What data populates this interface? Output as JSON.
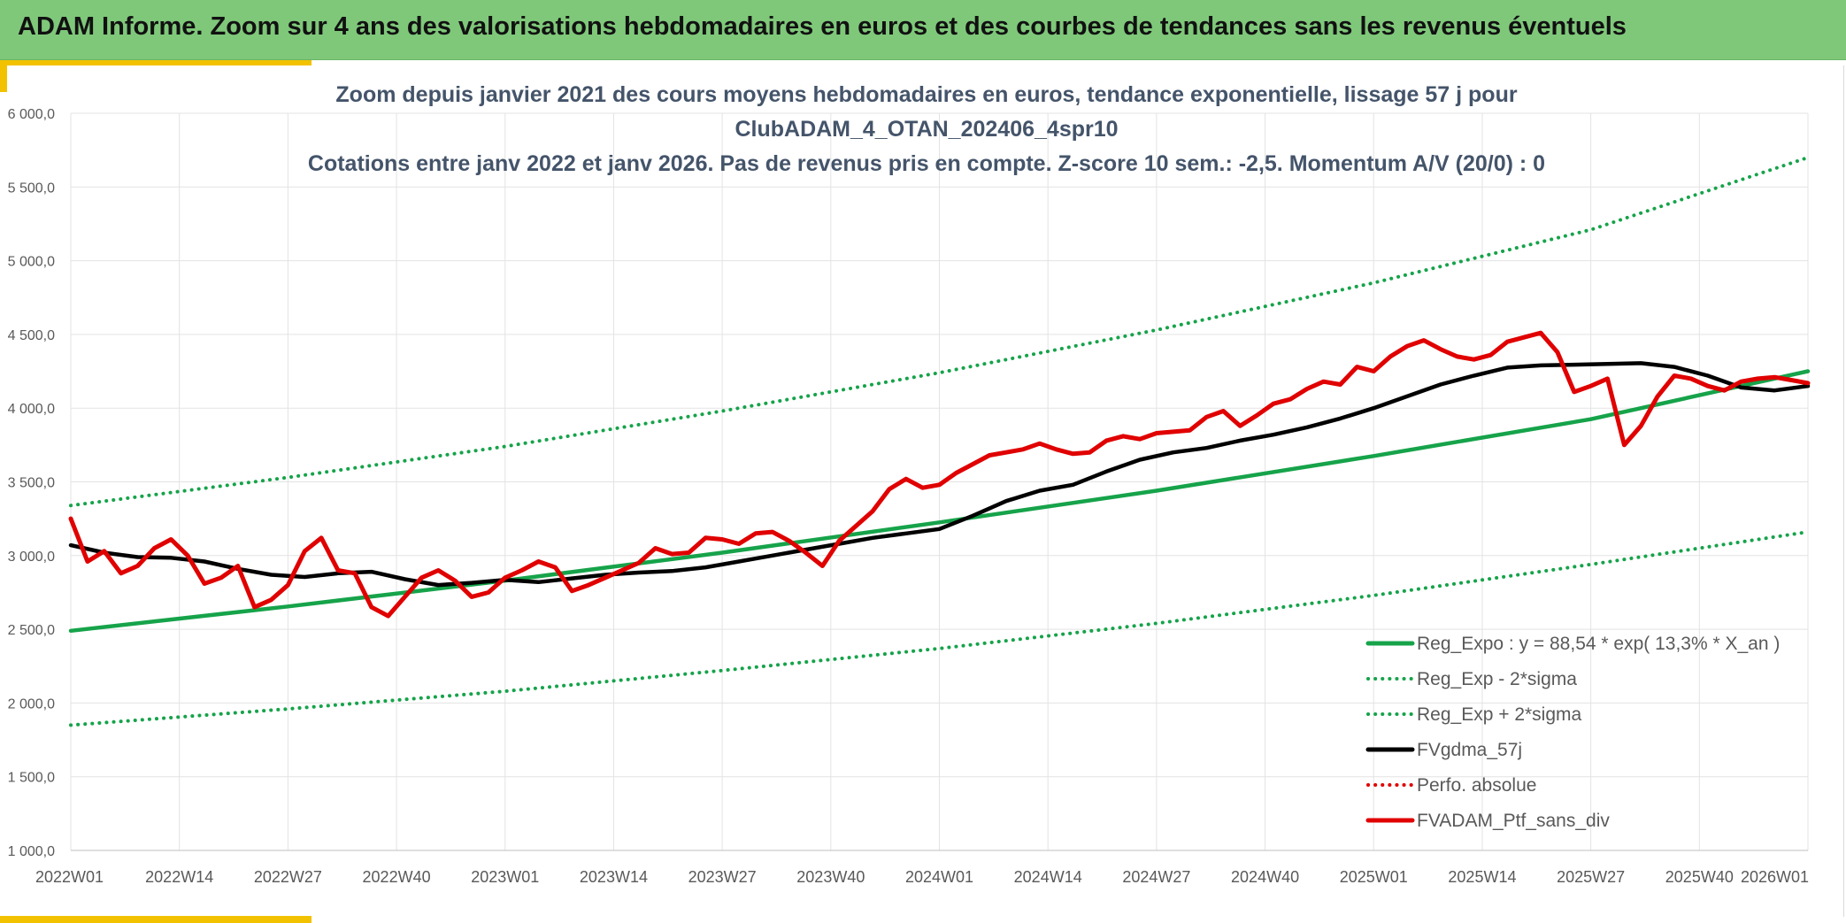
{
  "header": {
    "title": "ADAM Informe. Zoom sur 4 ans des valorisations hebdomadaires en euros et des courbes de tendances sans les revenus éventuels"
  },
  "colors": {
    "banner": "#7fc87a",
    "accent": "#f2c200",
    "reg_expo": "#16a34a",
    "fvgdma": "#000000",
    "fvadam": "#e00000",
    "title_text": "#44546a"
  },
  "chart_data": {
    "type": "line",
    "title": [
      "Zoom depuis janvier 2021 des cours moyens hebdomadaires en euros, tendance exponentielle, lissage 57 j pour",
      "ClubADAM_4_OTAN_202406_4spr10",
      "Cotations entre janv 2022 et janv 2026. Pas de revenus pris en compte. Z-score 10 sem.: -2,5. Momentum A/V (20/0) : 0"
    ],
    "ylim": [
      1000,
      6000
    ],
    "yticks": [
      "1 000,0",
      "1 500,0",
      "2 000,0",
      "2 500,0",
      "3 000,0",
      "3 500,0",
      "4 000,0",
      "4 500,0",
      "5 000,0",
      "5 500,0",
      "6 000,0"
    ],
    "ytick_values": [
      1000,
      1500,
      2000,
      2500,
      3000,
      3500,
      4000,
      4500,
      5000,
      5500,
      6000
    ],
    "xlim": [
      0,
      208
    ],
    "xticks": [
      "2022W01",
      "2022W14",
      "2022W27",
      "2022W40",
      "2023W01",
      "2023W14",
      "2023W27",
      "2023W40",
      "2024W01",
      "2024W14",
      "2024W27",
      "2024W40",
      "2025W01",
      "2025W14",
      "2025W27",
      "2025W40",
      "2026W01"
    ],
    "grid": true,
    "legend_position": "lower-right",
    "series": [
      {
        "name": "Reg_Expo : y = 88,54 * exp( 13,3% *  X_an )",
        "style": "solid",
        "color": "#16a34a",
        "x": [
          0,
          26,
          52,
          78,
          104,
          130,
          156,
          182,
          208
        ],
        "y": [
          2490,
          2655,
          2830,
          3020,
          3225,
          3440,
          3675,
          3925,
          4250
        ]
      },
      {
        "name": "Reg_Exp - 2*sigma",
        "style": "dotted",
        "color": "#16a34a",
        "x": [
          0,
          26,
          52,
          78,
          104,
          130,
          156,
          182,
          208
        ],
        "y": [
          1850,
          1960,
          2080,
          2220,
          2370,
          2540,
          2730,
          2940,
          3160
        ]
      },
      {
        "name": "Reg_Exp + 2*sigma",
        "style": "dotted",
        "color": "#16a34a",
        "x": [
          0,
          26,
          52,
          78,
          104,
          130,
          156,
          182,
          208
        ],
        "y": [
          3340,
          3530,
          3740,
          3980,
          4240,
          4530,
          4850,
          5210,
          5700
        ]
      },
      {
        "name": "FVgdma_57j",
        "style": "solid",
        "color": "#000000",
        "x": [
          0,
          4,
          8,
          12,
          16,
          20,
          24,
          28,
          32,
          36,
          40,
          44,
          48,
          52,
          56,
          60,
          64,
          68,
          72,
          76,
          80,
          84,
          88,
          92,
          96,
          100,
          104,
          108,
          112,
          116,
          120,
          124,
          128,
          132,
          136,
          140,
          144,
          148,
          152,
          156,
          160,
          164,
          168,
          172,
          176,
          180,
          184,
          188,
          192,
          196,
          200,
          204,
          208
        ],
        "y": [
          3070,
          3020,
          2990,
          2985,
          2960,
          2910,
          2870,
          2855,
          2880,
          2890,
          2840,
          2800,
          2815,
          2835,
          2820,
          2845,
          2870,
          2885,
          2895,
          2920,
          2960,
          3000,
          3040,
          3080,
          3120,
          3150,
          3180,
          3270,
          3370,
          3440,
          3480,
          3570,
          3650,
          3700,
          3730,
          3780,
          3820,
          3870,
          3930,
          4000,
          4080,
          4160,
          4220,
          4275,
          4290,
          4295,
          4300,
          4305,
          4280,
          4220,
          4140,
          4120,
          4150
        ]
      },
      {
        "name": "Perfo. absolue",
        "style": "dotted",
        "color": "#e00000",
        "x": [],
        "y": []
      },
      {
        "name": "FVADAM_Ptf_sans_div",
        "style": "solid",
        "color": "#e00000",
        "x": [
          0,
          2,
          4,
          6,
          8,
          10,
          12,
          14,
          16,
          18,
          20,
          22,
          24,
          26,
          28,
          30,
          32,
          34,
          36,
          38,
          40,
          42,
          44,
          46,
          48,
          50,
          52,
          54,
          56,
          58,
          60,
          62,
          64,
          66,
          68,
          70,
          72,
          74,
          76,
          78,
          80,
          82,
          84,
          86,
          88,
          90,
          92,
          94,
          96,
          98,
          100,
          102,
          104,
          106,
          108,
          110,
          112,
          114,
          116,
          118,
          120,
          122,
          124,
          126,
          128,
          130,
          132,
          134,
          136,
          138,
          140,
          142,
          144,
          146,
          148,
          150,
          152,
          154,
          156,
          158,
          160,
          162,
          164,
          166,
          168,
          170,
          172,
          174,
          176,
          178,
          180,
          182,
          184,
          186,
          188,
          190,
          192,
          194,
          196,
          198,
          200,
          202,
          204,
          206,
          208
        ],
        "y": [
          3250,
          2960,
          3030,
          2880,
          2930,
          3050,
          3110,
          3000,
          2810,
          2850,
          2930,
          2650,
          2700,
          2800,
          3030,
          3120,
          2900,
          2880,
          2650,
          2590,
          2720,
          2850,
          2900,
          2830,
          2720,
          2750,
          2850,
          2900,
          2960,
          2920,
          2760,
          2800,
          2850,
          2900,
          2950,
          3050,
          3010,
          3020,
          3120,
          3110,
          3080,
          3150,
          3160,
          3100,
          3020,
          2930,
          3100,
          3200,
          3300,
          3450,
          3520,
          3460,
          3480,
          3560,
          3620,
          3680,
          3700,
          3720,
          3760,
          3720,
          3690,
          3700,
          3780,
          3810,
          3790,
          3830,
          3840,
          3850,
          3940,
          3980,
          3880,
          3950,
          4030,
          4060,
          4130,
          4180,
          4160,
          4280,
          4250,
          4350,
          4420,
          4460,
          4400,
          4350,
          4330,
          4360,
          4450,
          4480,
          4510,
          4380,
          4110,
          4150,
          4200,
          3750,
          3880,
          4080,
          4220,
          4200,
          4150,
          4120,
          4180,
          4200,
          4210,
          4190,
          4170
        ]
      }
    ]
  }
}
